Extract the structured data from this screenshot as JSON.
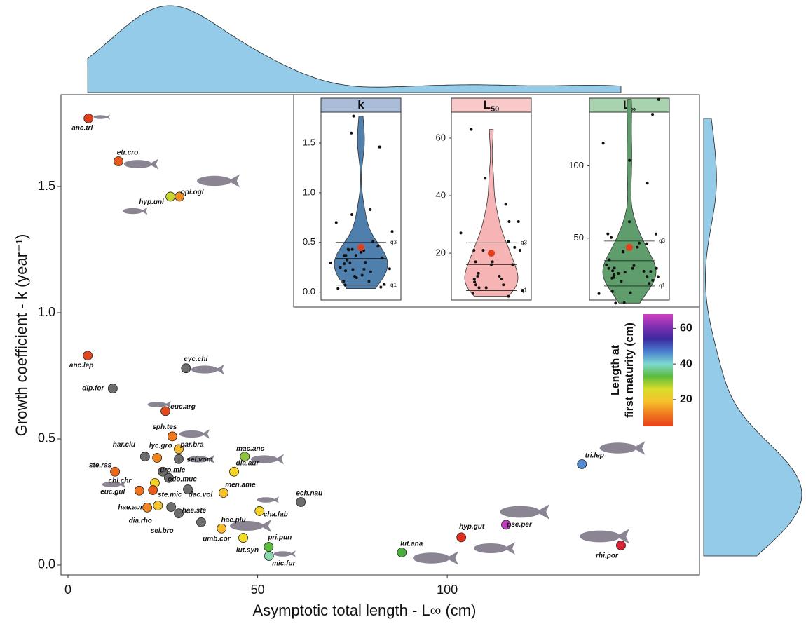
{
  "chart_data": {
    "type": "scatter",
    "x_label": "Asymptotic total length - L∞ (cm)",
    "y_label": "Growth coefficient - k (year⁻¹)",
    "point_labels": [
      "anc.tri",
      "etr.cro",
      "hyp.uni",
      "opi.ogl",
      "anc.lep",
      "cyc.chi",
      "dip.for",
      "euc.arg",
      "sph.tes",
      "par.bra",
      "har.clu",
      "lyc.gro",
      "sel.vom",
      "mac.anc",
      "uro.mic",
      "ste.ras",
      "odo.muc",
      "dia.aur",
      "chl.chr",
      "dac.vol",
      "euc.gul",
      "ste.mic",
      "men.ame",
      "ech.nau",
      "hae.aur",
      "dia.rho",
      "sel.bro",
      "hae.ste",
      "cha.fab",
      "umb.cor",
      "hae.plu",
      "lut.syn",
      "pri.pun",
      "mic.fur",
      "lut.ana",
      "hyp.gut",
      "pse.per",
      "tri.lep",
      "rhi.por"
    ],
    "x": [
      5.4,
      13.3,
      27.0,
      29.4,
      5.2,
      31.1,
      11.8,
      25.7,
      27.5,
      29.2,
      20.3,
      23.5,
      29.2,
      46.6,
      25.0,
      12.4,
      26.6,
      43.8,
      22.9,
      31.6,
      18.8,
      22.4,
      41.0,
      61.4,
      20.9,
      23.7,
      27.2,
      29.2,
      50.5,
      35.1,
      40.5,
      46.2,
      52.9,
      53.0,
      88.0,
      103.7,
      115.5,
      135.5,
      145.8
    ],
    "values": [
      1.77,
      1.6,
      1.46,
      1.46,
      0.83,
      0.78,
      0.7,
      0.61,
      0.51,
      0.46,
      0.43,
      0.425,
      0.42,
      0.43,
      0.37,
      0.37,
      0.345,
      0.37,
      0.325,
      0.3,
      0.295,
      0.297,
      0.286,
      0.25,
      0.228,
      0.236,
      0.23,
      0.205,
      0.214,
      0.17,
      0.145,
      0.108,
      0.072,
      0.036,
      0.05,
      0.11,
      0.16,
      0.4,
      0.078
    ],
    "l50": [
      7,
      9,
      24,
      13,
      8,
      null,
      null,
      8,
      11,
      16,
      null,
      12,
      null,
      27,
      null,
      10,
      null,
      21,
      21,
      null,
      11,
      9,
      17,
      null,
      12,
      17,
      null,
      null,
      21,
      null,
      16,
      22,
      31,
      37,
      31,
      6,
      63,
      46,
      5
    ],
    "colors": [
      "#e0401c",
      "#e85a1a",
      "#c9d62b",
      "#f08c22",
      "#e0481c",
      "#6d6d6d",
      "#6d6d6d",
      "#e2491b",
      "#ef7a1f",
      "#f6b82c",
      "#6d6d6d",
      "#f0851f",
      "#6d6d6d",
      "#8cc63f",
      "#6d6d6d",
      "#ec6a1e",
      "#6d6d6d",
      "#f5d327",
      "#f5d327",
      "#6d6d6d",
      "#ee731e",
      "#e85c1b",
      "#f6c22c",
      "#6d6d6d",
      "#f0861f",
      "#f6c22c",
      "#6d6d6d",
      "#6d6d6d",
      "#f5d327",
      "#6d6d6d",
      "#f6ba2b",
      "#f4dd2a",
      "#5bbb3c",
      "#8ed8b0",
      "#4cae3c",
      "#dc2f1e",
      "#c03cbf",
      "#5588d0",
      "#d82538"
    ],
    "xlim": [
      -1.85,
      166.5
    ],
    "xticks": [
      0,
      50,
      100
    ],
    "ylim": [
      -0.039,
      1.864
    ],
    "yticks": [
      {
        "value": 0,
        "label": "0.0"
      },
      0.5,
      {
        "value": 1,
        "label": "1.0"
      },
      1.5
    ],
    "marginal_color": "#93cbe8",
    "colorbar": {
      "title": [
        "Length at",
        "first maturity (cm)"
      ],
      "lim": [
        5,
        68
      ],
      "ticks": [
        20,
        40,
        60
      ],
      "colors": [
        "#e8401c",
        "#f07a1e",
        "#f6c22c",
        "#d8dc2a",
        "#5bbb3c",
        "#7fd8d0",
        "#4a7fd0",
        "#3a2aa0",
        "#8030b0",
        "#d040c0"
      ]
    },
    "insets": [
      {
        "title": "k",
        "title_sub": "",
        "color": "#4f7fad",
        "header_color": "#a9bcd8",
        "ylim": [
          -0.08,
          1.81
        ],
        "yticks": [
          {
            "value": 0,
            "label": "0.0"
          },
          0.5,
          {
            "value": 1,
            "label": "1.0"
          },
          1.5
        ],
        "mean": 0.45,
        "median": 0.34,
        "q1": 0.07,
        "q3": 0.5,
        "q1_label": "q1",
        "q3_label": "q3"
      },
      {
        "title": "L",
        "title_sub": "50",
        "color": "#f7b4b4",
        "header_color": "#f9c9c9",
        "ylim": [
          3.7,
          69
        ],
        "yticks": [
          20,
          40,
          60
        ],
        "mean": 20,
        "median": 16,
        "q1": 7,
        "q3": 23.6,
        "q1_label": "q1",
        "q3_label": "q3"
      },
      {
        "title": "L",
        "title_sub": "∞",
        "color": "#5f9e6c",
        "header_color": "#a8d3ae",
        "ylim": [
          7.3,
          137
        ],
        "yticks": [
          50,
          100
        ],
        "mean": 43.7,
        "median": 34.5,
        "q1": 17,
        "q3": 48,
        "q1_label": "q1",
        "q3_label": "q3"
      }
    ]
  }
}
